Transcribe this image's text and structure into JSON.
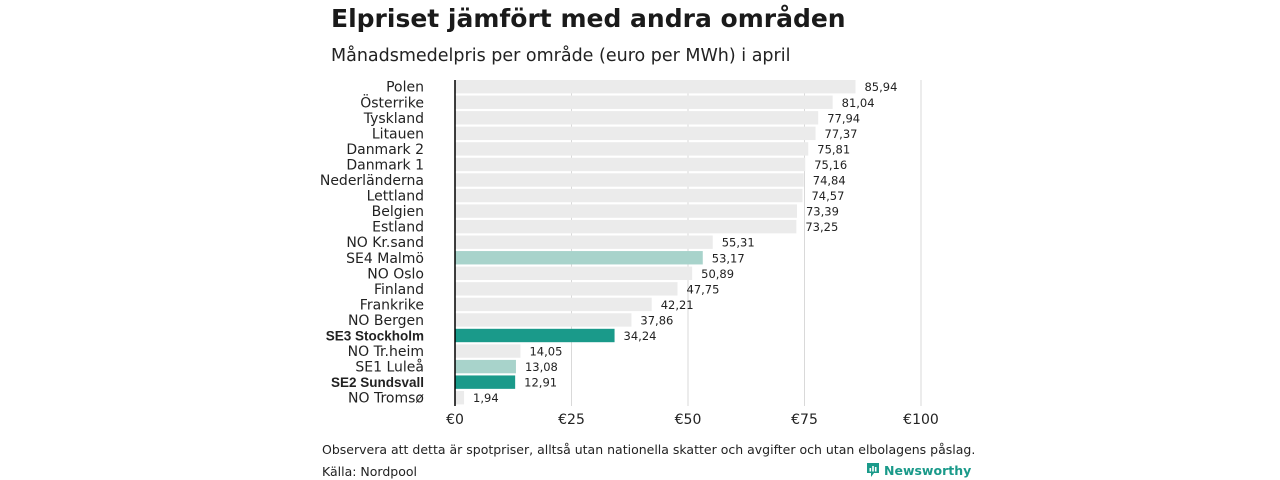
{
  "header": {
    "title": "Elpriset jämfört med andra områden",
    "subtitle": "Månadsmedelpris per område (euro per MWh) i april"
  },
  "footer": {
    "note": "Observera att detta är spotpriser, alltså utan nationella skatter och avgifter och utan elbolagens påslag.",
    "source": "Källa: Nordpool",
    "brand": "Newsworthy",
    "brand_icon": "newsworthy-logo-icon"
  },
  "colors": {
    "default_bar": "#ebebeb",
    "highlight_light": "#a8d3cb",
    "highlight_dark": "#1a9a8a",
    "grid": "#d9d9d9",
    "axis": "#000000"
  },
  "chart_data": {
    "type": "bar",
    "orientation": "horizontal",
    "categories": [
      "Polen",
      "Österrike",
      "Tyskland",
      "Litauen",
      "Danmark  2",
      "Danmark  1",
      "Nederländerna",
      "Lettland",
      "Belgien",
      "Estland",
      "NO Kr.sand",
      "SE4  Malmö",
      "NO Oslo",
      "Finland",
      "Frankrike",
      "NO Bergen",
      "SE3 Stockholm",
      "NO Tr.heim",
      "SE1  Luleå",
      "SE2 Sundsvall",
      "NO Tromsø"
    ],
    "values": [
      85.94,
      81.04,
      77.94,
      77.37,
      75.81,
      75.16,
      74.84,
      74.57,
      73.39,
      73.25,
      55.31,
      53.17,
      50.89,
      47.75,
      42.21,
      37.86,
      34.24,
      14.05,
      13.08,
      12.91,
      1.94
    ],
    "value_labels": [
      "85,94",
      "81,04",
      "77,94",
      "77,37",
      "75,81",
      "75,16",
      "74,84",
      "74,57",
      "73,39",
      "73,25",
      "55,31",
      "53,17",
      "50,89",
      "47,75",
      "42,21",
      "37,86",
      "34,24",
      "14,05",
      "13,08",
      "12,91",
      "1,94"
    ],
    "highlight": [
      "none",
      "none",
      "none",
      "none",
      "none",
      "none",
      "none",
      "none",
      "none",
      "none",
      "none",
      "light",
      "none",
      "none",
      "none",
      "none",
      "dark",
      "none",
      "light",
      "dark",
      "none"
    ],
    "bold_labels": [
      false,
      false,
      false,
      false,
      false,
      false,
      false,
      false,
      false,
      false,
      false,
      false,
      false,
      false,
      false,
      false,
      true,
      false,
      false,
      true,
      false
    ],
    "xlim": [
      0,
      100
    ],
    "xticks": [
      0,
      25,
      50,
      75,
      100
    ],
    "xtick_labels": [
      "€0",
      "€25",
      "€50",
      "€75",
      "€100"
    ],
    "grid": true,
    "legend": "none"
  }
}
